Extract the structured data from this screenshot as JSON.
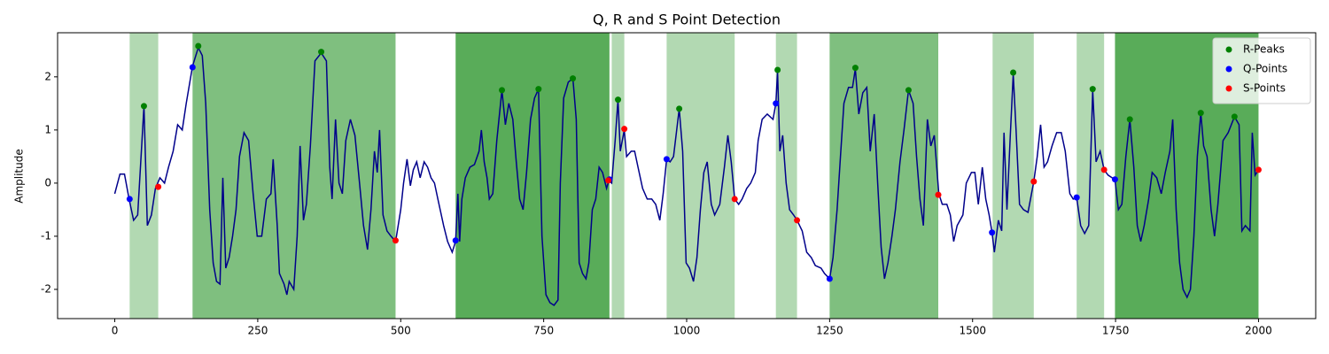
{
  "chart_data": {
    "type": "line",
    "title": "Q, R and S Point Detection",
    "y_label": "Amplitude",
    "xlim": [
      -100,
      2100
    ],
    "ylim": [
      -2.55,
      2.83
    ],
    "xticks": [
      0,
      250,
      500,
      750,
      1000,
      1250,
      1500,
      1750,
      2000
    ],
    "yticks": [
      -2,
      -1,
      0,
      1,
      2
    ],
    "legend": "upper right",
    "line_color": "#00008b",
    "span_color": "green",
    "spans": [
      {
        "start": 26,
        "end": 76,
        "alpha": 0.3
      },
      {
        "start": 136,
        "end": 491,
        "alpha": 0.5
      },
      {
        "start": 596,
        "end": 865,
        "alpha": 0.65
      },
      {
        "start": 869,
        "end": 891,
        "alpha": 0.3
      },
      {
        "start": 965,
        "end": 1084,
        "alpha": 0.3
      },
      {
        "start": 1156,
        "end": 1193,
        "alpha": 0.3
      },
      {
        "start": 1250,
        "end": 1440,
        "alpha": 0.5
      },
      {
        "start": 1535,
        "end": 1607,
        "alpha": 0.3
      },
      {
        "start": 1682,
        "end": 1730,
        "alpha": 0.3
      },
      {
        "start": 1749,
        "end": 2000,
        "alpha": 0.65
      }
    ],
    "x": [
      0,
      9,
      17,
      25,
      33,
      40,
      51,
      57,
      64,
      71,
      79,
      87,
      94,
      102,
      110,
      118,
      125,
      136,
      146,
      153,
      159,
      166,
      172,
      178,
      184,
      189,
      194,
      200,
      206,
      212,
      218,
      226,
      234,
      242,
      249,
      257,
      265,
      273,
      277,
      284,
      288,
      296,
      301,
      305,
      313,
      319,
      324,
      330,
      335,
      342,
      350,
      361,
      370,
      376,
      380,
      386,
      392,
      398,
      404,
      412,
      420,
      428,
      435,
      442,
      448,
      454,
      459,
      463,
      469,
      476,
      483,
      491,
      500,
      505,
      511,
      517,
      522,
      528,
      534,
      541,
      547,
      553,
      559,
      565,
      575,
      582,
      590,
      596,
      600,
      603,
      607,
      613,
      621,
      629,
      637,
      641,
      646,
      651,
      655,
      661,
      668,
      677,
      683,
      689,
      696,
      702,
      708,
      714,
      720,
      727,
      734,
      741,
      747,
      754,
      761,
      768,
      775,
      779,
      785,
      793,
      801,
      807,
      812,
      818,
      824,
      829,
      835,
      841,
      847,
      853,
      860,
      864,
      869,
      875,
      880,
      884,
      891,
      895,
      903,
      909,
      915,
      923,
      931,
      939,
      946,
      953,
      959,
      965,
      971,
      977,
      987,
      993,
      999,
      1005,
      1012,
      1018,
      1024,
      1030,
      1036,
      1043,
      1049,
      1058,
      1066,
      1072,
      1078,
      1084,
      1091,
      1097,
      1105,
      1112,
      1120,
      1125,
      1132,
      1141,
      1151,
      1156,
      1159,
      1163,
      1168,
      1174,
      1180,
      1187,
      1193,
      1202,
      1210,
      1218,
      1225,
      1235,
      1241,
      1250,
      1256,
      1263,
      1269,
      1275,
      1283,
      1290,
      1295,
      1301,
      1308,
      1315,
      1321,
      1328,
      1334,
      1340,
      1346,
      1352,
      1359,
      1365,
      1373,
      1380,
      1388,
      1396,
      1402,
      1408,
      1414,
      1421,
      1427,
      1433,
      1441,
      1447,
      1455,
      1461,
      1467,
      1473,
      1483,
      1489,
      1498,
      1504,
      1510,
      1517,
      1523,
      1529,
      1534,
      1538,
      1545,
      1551,
      1555,
      1560,
      1566,
      1571,
      1576,
      1582,
      1589,
      1597,
      1607,
      1613,
      1619,
      1625,
      1631,
      1639,
      1647,
      1655,
      1662,
      1670,
      1676,
      1682,
      1689,
      1696,
      1703,
      1710,
      1716,
      1723,
      1730,
      1737,
      1744,
      1749,
      1755,
      1761,
      1768,
      1775,
      1782,
      1788,
      1794,
      1800,
      1808,
      1814,
      1822,
      1830,
      1837,
      1845,
      1850,
      1856,
      1862,
      1868,
      1875,
      1881,
      1887,
      1893,
      1899,
      1904,
      1910,
      1917,
      1923,
      1929,
      1938,
      1947,
      1958,
      1966,
      1971,
      1977,
      1985,
      1989,
      1994,
      2000
    ],
    "values": [
      -0.2,
      0.17,
      0.17,
      -0.3,
      -0.7,
      -0.6,
      1.45,
      -0.8,
      -0.6,
      -0.1,
      0.1,
      0.0,
      0.3,
      0.6,
      1.1,
      1.0,
      1.5,
      2.2,
      2.55,
      2.4,
      1.5,
      -0.5,
      -1.5,
      -1.85,
      -1.9,
      0.1,
      -1.6,
      -1.4,
      -1.0,
      -0.5,
      0.5,
      0.95,
      0.8,
      -0.2,
      -1.0,
      -1.0,
      -0.3,
      -0.2,
      0.45,
      -0.8,
      -1.7,
      -1.9,
      -2.1,
      -1.85,
      -2.0,
      -1.0,
      0.7,
      -0.7,
      -0.4,
      0.7,
      2.3,
      2.45,
      2.3,
      0.3,
      -0.3,
      1.2,
      0.0,
      -0.2,
      0.8,
      1.2,
      0.9,
      0.0,
      -0.8,
      -1.25,
      -0.5,
      0.6,
      0.2,
      1.0,
      -0.6,
      -0.9,
      -1.0,
      -1.1,
      -0.5,
      0.0,
      0.45,
      -0.05,
      0.25,
      0.4,
      0.1,
      0.4,
      0.3,
      0.1,
      0.0,
      -0.3,
      -0.8,
      -1.1,
      -1.3,
      -1.1,
      -0.2,
      -1.1,
      -0.3,
      0.1,
      0.3,
      0.35,
      0.6,
      1.0,
      0.4,
      0.1,
      -0.3,
      -0.2,
      0.8,
      1.75,
      1.1,
      1.5,
      1.2,
      0.4,
      -0.3,
      -0.5,
      0.2,
      1.2,
      1.6,
      1.77,
      -1.0,
      -2.1,
      -2.25,
      -2.3,
      -2.2,
      0.0,
      1.6,
      1.9,
      1.97,
      1.2,
      -1.5,
      -1.7,
      -1.8,
      -1.5,
      -0.5,
      -0.3,
      0.3,
      0.2,
      -0.1,
      0.05,
      0.0,
      0.8,
      1.57,
      0.6,
      1.0,
      0.5,
      0.6,
      0.6,
      0.3,
      -0.1,
      -0.3,
      -0.3,
      -0.4,
      -0.7,
      -0.2,
      0.45,
      0.4,
      0.5,
      1.4,
      0.6,
      -1.5,
      -1.6,
      -1.85,
      -1.4,
      -0.5,
      0.2,
      0.4,
      -0.4,
      -0.6,
      -0.4,
      0.3,
      0.9,
      0.4,
      -0.3,
      -0.4,
      -0.3,
      -0.1,
      0.0,
      0.2,
      0.8,
      1.2,
      1.3,
      1.2,
      1.5,
      2.1,
      0.6,
      0.9,
      0.0,
      -0.5,
      -0.6,
      -0.7,
      -0.9,
      -1.3,
      -1.4,
      -1.55,
      -1.6,
      -1.7,
      -1.8,
      -1.4,
      -0.5,
      0.5,
      1.5,
      1.8,
      1.8,
      2.15,
      1.3,
      1.7,
      1.8,
      0.6,
      1.3,
      0.0,
      -1.2,
      -1.8,
      -1.5,
      -1.0,
      -0.5,
      0.4,
      1.0,
      1.75,
      1.5,
      0.5,
      -0.3,
      -0.8,
      1.2,
      0.7,
      0.9,
      -0.2,
      -0.4,
      -0.4,
      -0.6,
      -1.1,
      -0.8,
      -0.6,
      0.0,
      0.2,
      0.2,
      -0.4,
      0.3,
      -0.3,
      -0.6,
      -0.93,
      -1.3,
      -0.7,
      -0.9,
      0.95,
      -0.5,
      0.9,
      2.05,
      1.0,
      -0.4,
      -0.5,
      -0.55,
      0.03,
      0.5,
      1.1,
      0.3,
      0.4,
      0.7,
      0.95,
      0.95,
      0.6,
      -0.2,
      -0.3,
      -0.27,
      -0.8,
      -0.95,
      -0.8,
      1.75,
      0.4,
      0.6,
      0.25,
      0.15,
      0.1,
      0.07,
      -0.5,
      -0.4,
      0.5,
      1.2,
      0.3,
      -0.8,
      -1.1,
      -0.8,
      -0.3,
      0.2,
      0.1,
      -0.2,
      0.2,
      0.6,
      1.2,
      -0.5,
      -1.5,
      -2.0,
      -2.15,
      -2.0,
      -1.0,
      0.5,
      1.32,
      0.7,
      0.5,
      -0.5,
      -1.0,
      -0.4,
      0.8,
      0.95,
      1.25,
      1.1,
      -0.9,
      -0.8,
      -0.9,
      0.95,
      0.15,
      0.25
    ],
    "series": [
      {
        "name": "R-Peaks",
        "color": "green",
        "x": [
          51,
          146,
          361,
          677,
          741,
          801,
          880,
          987,
          1159,
          1295,
          1388,
          1571,
          1710,
          1775,
          1899,
          1958
        ],
        "values": [
          1.45,
          2.58,
          2.47,
          1.75,
          1.77,
          1.97,
          1.57,
          1.4,
          2.13,
          2.17,
          1.75,
          2.08,
          1.77,
          1.2,
          1.32,
          1.25
        ]
      },
      {
        "name": "Q-Points",
        "color": "blue",
        "x": [
          26,
          136,
          596,
          865,
          965,
          1156,
          1250,
          1534,
          1682,
          1749
        ],
        "values": [
          -0.3,
          2.18,
          -1.08,
          0.07,
          0.45,
          1.5,
          -1.8,
          -0.93,
          -0.27,
          0.07
        ]
      },
      {
        "name": "S-Points",
        "color": "red",
        "x": [
          76,
          491,
          863,
          891,
          1084,
          1193,
          1440,
          1607,
          1730,
          2000
        ],
        "values": [
          -0.07,
          -1.08,
          0.05,
          1.02,
          -0.3,
          -0.7,
          -0.22,
          0.03,
          0.25,
          0.25
        ]
      }
    ]
  }
}
